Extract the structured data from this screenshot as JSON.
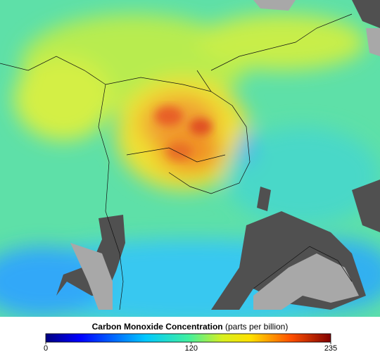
{
  "colorbar": {
    "title": "Carbon Monoxide Concentration",
    "unit": "(parts per billion)",
    "range": [
      0,
      235
    ],
    "ticks": [
      0,
      120,
      235
    ]
  }
}
